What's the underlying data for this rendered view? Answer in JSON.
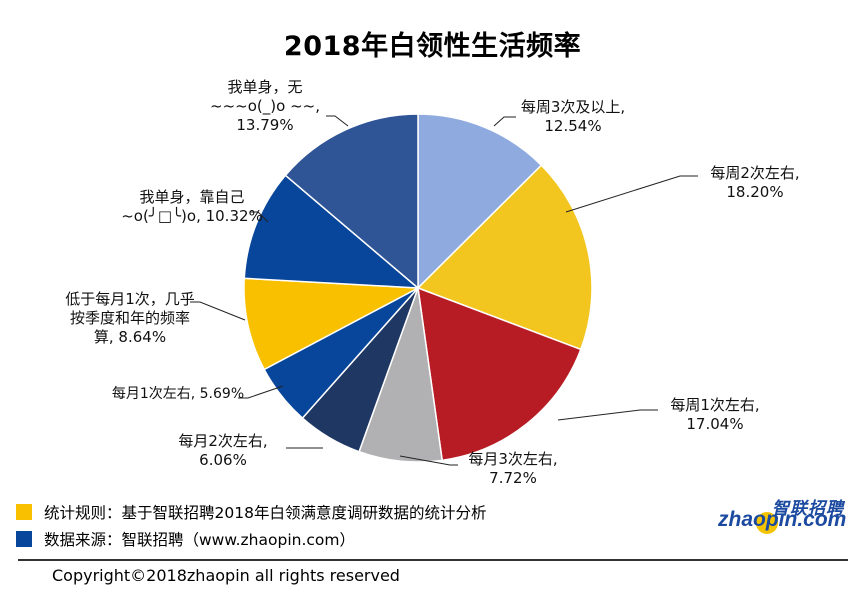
{
  "chart_data": {
    "type": "pie",
    "title": "2018年白领性生活频率",
    "slices": [
      {
        "label": "每周3次及以上",
        "value": 12.54,
        "value_text": "12.54%",
        "color": "#8eaadf"
      },
      {
        "label": "每周2次左右",
        "value": 18.2,
        "value_text": "18.20%",
        "color": "#f2c61f"
      },
      {
        "label": "每周1次左右",
        "value": 17.04,
        "value_text": "17.04%",
        "color": "#b71c24"
      },
      {
        "label": "每月3次左右",
        "value": 7.72,
        "value_text": "7.72%",
        "color": "#b1b1b3"
      },
      {
        "label": "每月2次左右",
        "value": 6.06,
        "value_text": "6.06%",
        "color": "#1f3763"
      },
      {
        "label": "每月1次左右",
        "value": 5.69,
        "value_text": "5.69%",
        "color": "#07469a"
      },
      {
        "label": "低于每月1次，几乎按季度和年的频率算",
        "value": 8.64,
        "value_text": "8.64%",
        "color": "#f9c000"
      },
      {
        "label": "我单身，靠自己~o(╯□╰)o",
        "value": 10.32,
        "value_text": "10.32%",
        "color": "#07469a"
      },
      {
        "label": "我单身，无~~~o(_)o ~~",
        "value": 13.79,
        "value_text": "13.79%",
        "color": "#2f5597"
      }
    ],
    "label_lines": [
      [
        "每周3次及以上,",
        "12.54%"
      ],
      [
        "每周2次左右,",
        "18.20%"
      ],
      [
        "每周1次左右,",
        "17.04%"
      ],
      [
        "每月3次左右,",
        "7.72%"
      ],
      [
        "每月2次左右,",
        "6.06%"
      ],
      [
        "每月1次左右, 5.69%"
      ],
      [
        "低于每月1次，几乎",
        "按季度和年的频率",
        "算, 8.64%"
      ],
      [
        "我单身，靠自己",
        "~o(╯□╰)o, 10.32%"
      ],
      [
        "我单身，无",
        "~~~o(_)o ~~,",
        "13.79%"
      ]
    ]
  },
  "legend": [
    {
      "text": "统计规则：基于智联招聘2018年白领满意度调研数据的统计分析",
      "color": "#f9c000"
    },
    {
      "text": "数据来源：智联招聘（www.zhaopin.com）",
      "color": "#07469a"
    }
  ],
  "footer": {
    "copyright": "Copyright©2018zhaopin all rights reserved"
  },
  "logo": {
    "cn": "智联招聘",
    "en": "zhaopin.com"
  }
}
